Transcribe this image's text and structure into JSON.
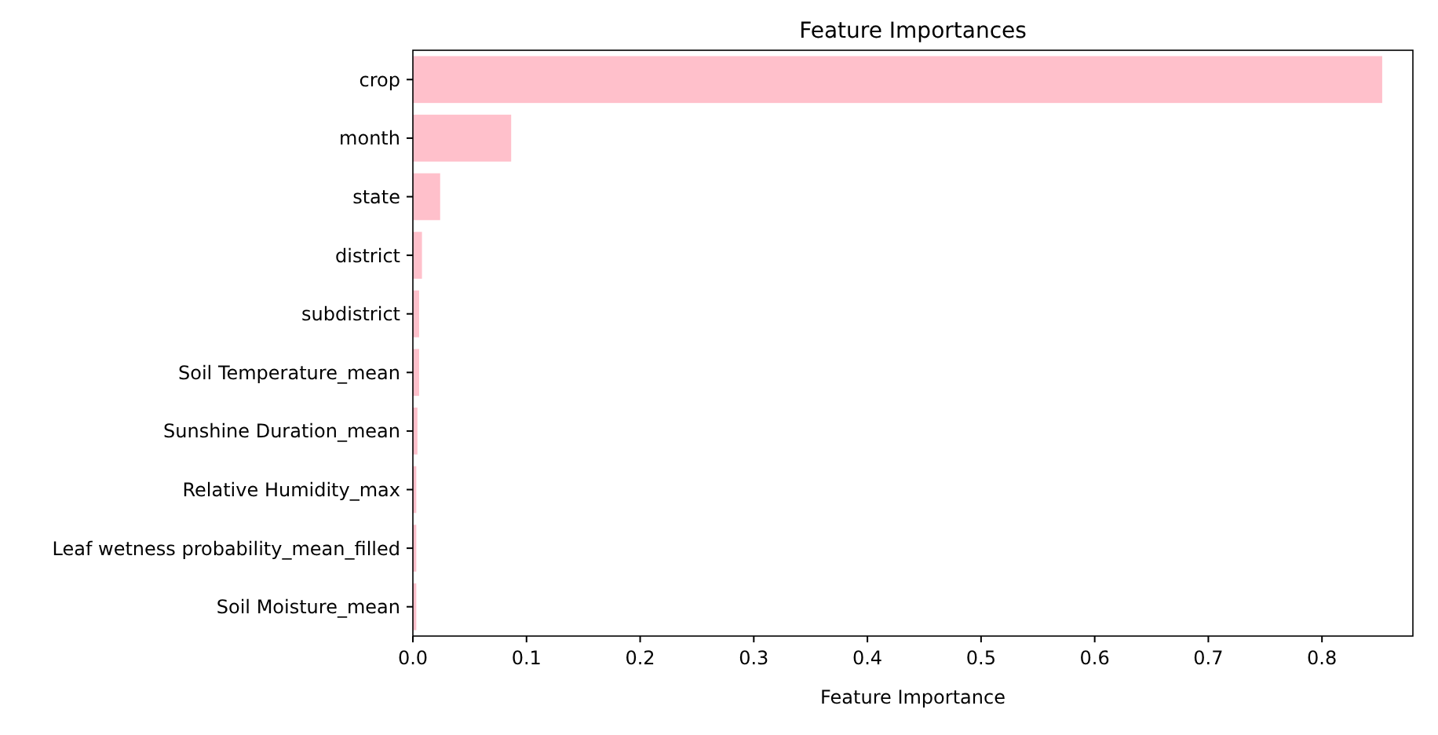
{
  "chart_data": {
    "type": "bar",
    "orientation": "horizontal",
    "title": "Feature Importances",
    "xlabel": "Feature Importance",
    "categories": [
      "crop",
      "month",
      "state",
      "district",
      "subdistrict",
      "Soil Temperature_mean",
      "Sunshine Duration_mean",
      "Relative Humidity_max",
      "Leaf wetness probability_mean_filled",
      "Soil Moisture_mean"
    ],
    "values": [
      0.853,
      0.0865,
      0.024,
      0.008,
      0.0055,
      0.0055,
      0.004,
      0.003,
      0.003,
      0.003
    ],
    "color": "#ffc0cb",
    "xlim": [
      0,
      0.88
    ],
    "xticks": [
      {
        "value": 0,
        "label": "0.0"
      },
      {
        "value": 0.1,
        "label": "0.1"
      },
      {
        "value": 0.2,
        "label": "0.2"
      },
      {
        "value": 0.3,
        "label": "0.3"
      },
      {
        "value": 0.4,
        "label": "0.4"
      },
      {
        "value": 0.5,
        "label": "0.5"
      },
      {
        "value": 0.6,
        "label": "0.6"
      },
      {
        "value": 0.7,
        "label": "0.7"
      },
      {
        "value": 0.8,
        "label": "0.8"
      }
    ],
    "grid": false
  }
}
